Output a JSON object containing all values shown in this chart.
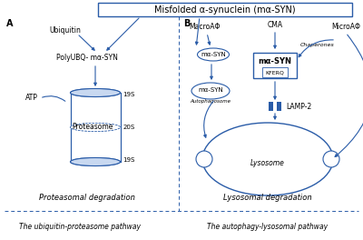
{
  "title": "Misfolded α-synuclein (mα-SYN)",
  "bg_color": "#ffffff",
  "main_color": "#2a5ca8",
  "label_A": "A",
  "label_B": "B",
  "section_left_label": "Proteasomal degradation",
  "section_right_label": "Lysosomal degradation",
  "bottom_left_label": "The ubiquitin-proteasome pathway",
  "bottom_right_label": "The autophagy-lysosomal pathway",
  "ubiquitin_label": "Ubiquitin",
  "polyubq_label": "PolyUBQ- mα-SYN",
  "atp_label": "ATP",
  "proteasome_label": "Proteasome",
  "s19_top": "19S",
  "s20": "20S",
  "s19_bot": "19S",
  "macroAF_label": "MacroAΦ",
  "cma_label": "CMA",
  "microAF_label": "MicroAΦ",
  "chaperones_label": "Chaperones",
  "masyn_box_label": "mα-SYN",
  "kferq_label": "KFERQ",
  "lamp2_label": "LAMP-2",
  "lysosome_label": "Lysosome",
  "masyn_oval1": "mα-SYN",
  "masyn_oval2": "mα-SYN",
  "autophagosome_label": "Autophagosome"
}
